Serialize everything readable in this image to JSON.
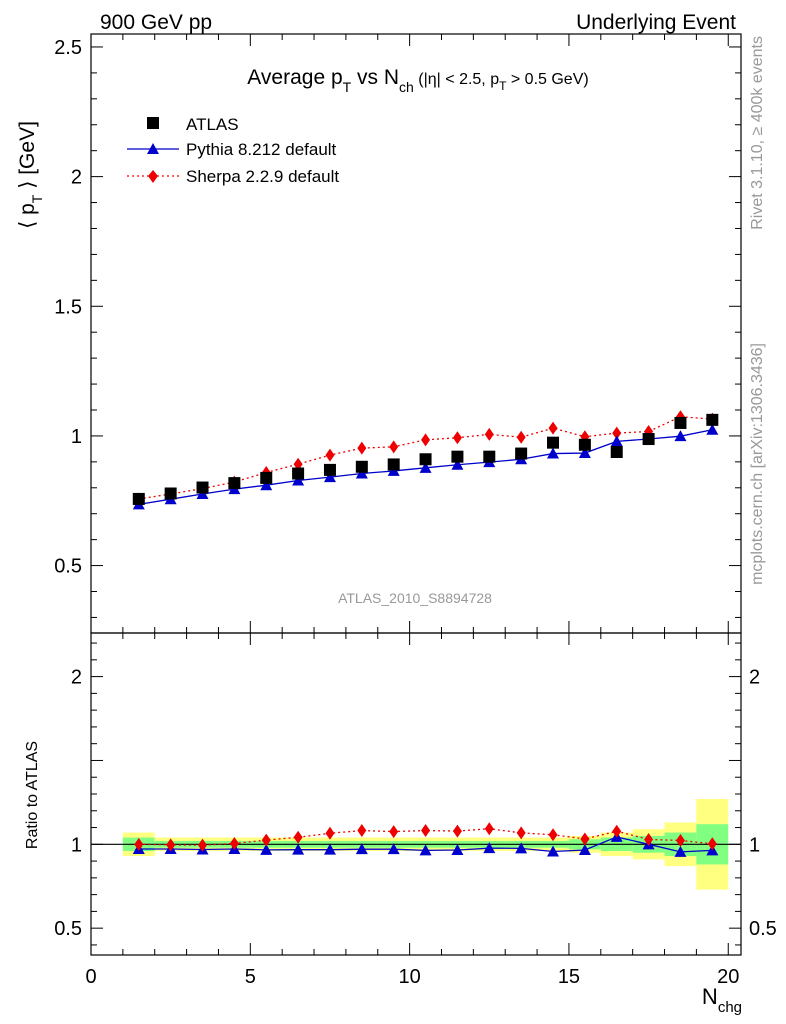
{
  "header": {
    "left": "900 GeV pp",
    "right": "Underlying Event"
  },
  "side": {
    "rivet": "Rivet 3.1.10, ≥ 400k events",
    "mcplots": "mcplots.cern.ch [arXiv:1306.3436]"
  },
  "analysis_id": "ATLAS_2010_S8894728",
  "colors": {
    "data": "#000000",
    "pythia": "#0000cc",
    "sherpa": "#ee0000",
    "band_inner": "#80ff80",
    "band_outer": "#ffff80"
  },
  "chart_data": [
    {
      "type": "scatter",
      "title": {
        "pre": "Average p",
        "sub1": "T",
        "mid": " vs N",
        "sub2": "ch",
        "post": " (|η| < 2.5, p",
        "sub3": "T",
        "end": " > 0.5 GeV)"
      },
      "ylabel": {
        "pre": "⟨ p",
        "sub": "T",
        "post": " ⟩ [GeV]"
      },
      "xlim": [
        0,
        20.4
      ],
      "ylim": [
        0.24,
        2.55
      ],
      "yticks": [
        0.5,
        1,
        1.5,
        2,
        2.5
      ],
      "ytick_labels": [
        "0.5",
        "1",
        "1.5",
        "2",
        "2.5"
      ],
      "legend_position": "top-left",
      "x": [
        1.5,
        2.5,
        3.5,
        4.5,
        5.5,
        6.5,
        7.5,
        8.5,
        9.5,
        10.5,
        11.5,
        12.5,
        13.5,
        14.5,
        15.5,
        16.5,
        17.5,
        18.5,
        19.5
      ],
      "series": [
        {
          "name": "ATLAS",
          "marker": "square",
          "values": [
            0.757,
            0.778,
            0.801,
            0.818,
            0.838,
            0.855,
            0.869,
            0.881,
            0.89,
            0.91,
            0.92,
            0.92,
            0.932,
            0.974,
            0.966,
            0.938,
            0.988,
            1.05,
            1.062
          ]
        },
        {
          "name": "Pythia 8.212 default",
          "marker": "triangle",
          "values": [
            0.736,
            0.756,
            0.776,
            0.795,
            0.81,
            0.828,
            0.841,
            0.855,
            0.865,
            0.877,
            0.889,
            0.899,
            0.91,
            0.932,
            0.934,
            0.979,
            0.988,
            0.999,
            1.024
          ]
        },
        {
          "name": "Sherpa 2.2.9 default",
          "marker": "diamond",
          "values": [
            0.757,
            0.776,
            0.797,
            0.822,
            0.859,
            0.891,
            0.926,
            0.953,
            0.958,
            0.985,
            0.993,
            1.006,
            0.995,
            1.03,
            0.997,
            1.011,
            1.017,
            1.074,
            1.065
          ]
        }
      ]
    },
    {
      "type": "line",
      "ylabel": "Ratio to ATLAS",
      "xlabel": {
        "pre": "N",
        "sub": "chg"
      },
      "xlim": [
        0,
        20.4
      ],
      "ylim": [
        0.34,
        2.26
      ],
      "xticks": [
        0,
        5,
        10,
        15,
        20
      ],
      "xtick_labels": [
        "0",
        "5",
        "10",
        "15",
        "20"
      ],
      "yticks": [
        0.5,
        1,
        2
      ],
      "ytick_labels": [
        "0.5",
        "1",
        "2"
      ],
      "x": [
        1.5,
        2.5,
        3.5,
        4.5,
        5.5,
        6.5,
        7.5,
        8.5,
        9.5,
        10.5,
        11.5,
        12.5,
        13.5,
        14.5,
        15.5,
        16.5,
        17.5,
        18.5,
        19.5
      ],
      "band_inner": [
        0.04,
        0.02,
        0.02,
        0.02,
        0.02,
        0.02,
        0.02,
        0.02,
        0.02,
        0.02,
        0.02,
        0.02,
        0.02,
        0.02,
        0.03,
        0.04,
        0.05,
        0.07,
        0.12
      ],
      "band_outer": [
        0.07,
        0.04,
        0.04,
        0.04,
        0.04,
        0.04,
        0.04,
        0.04,
        0.04,
        0.04,
        0.04,
        0.04,
        0.04,
        0.04,
        0.05,
        0.07,
        0.09,
        0.13,
        0.27
      ],
      "series": [
        {
          "name": "Pythia 8.212 default",
          "marker": "triangle",
          "values": [
            0.972,
            0.972,
            0.969,
            0.972,
            0.967,
            0.968,
            0.968,
            0.971,
            0.971,
            0.964,
            0.966,
            0.977,
            0.976,
            0.957,
            0.966,
            1.044,
            1.0,
            0.955,
            0.964
          ]
        },
        {
          "name": "Sherpa 2.2.9 default",
          "marker": "diamond",
          "values": [
            1.0,
            0.997,
            0.995,
            1.005,
            1.025,
            1.042,
            1.066,
            1.082,
            1.076,
            1.082,
            1.079,
            1.093,
            1.068,
            1.057,
            1.032,
            1.078,
            1.029,
            1.023,
            1.003
          ]
        }
      ]
    }
  ]
}
